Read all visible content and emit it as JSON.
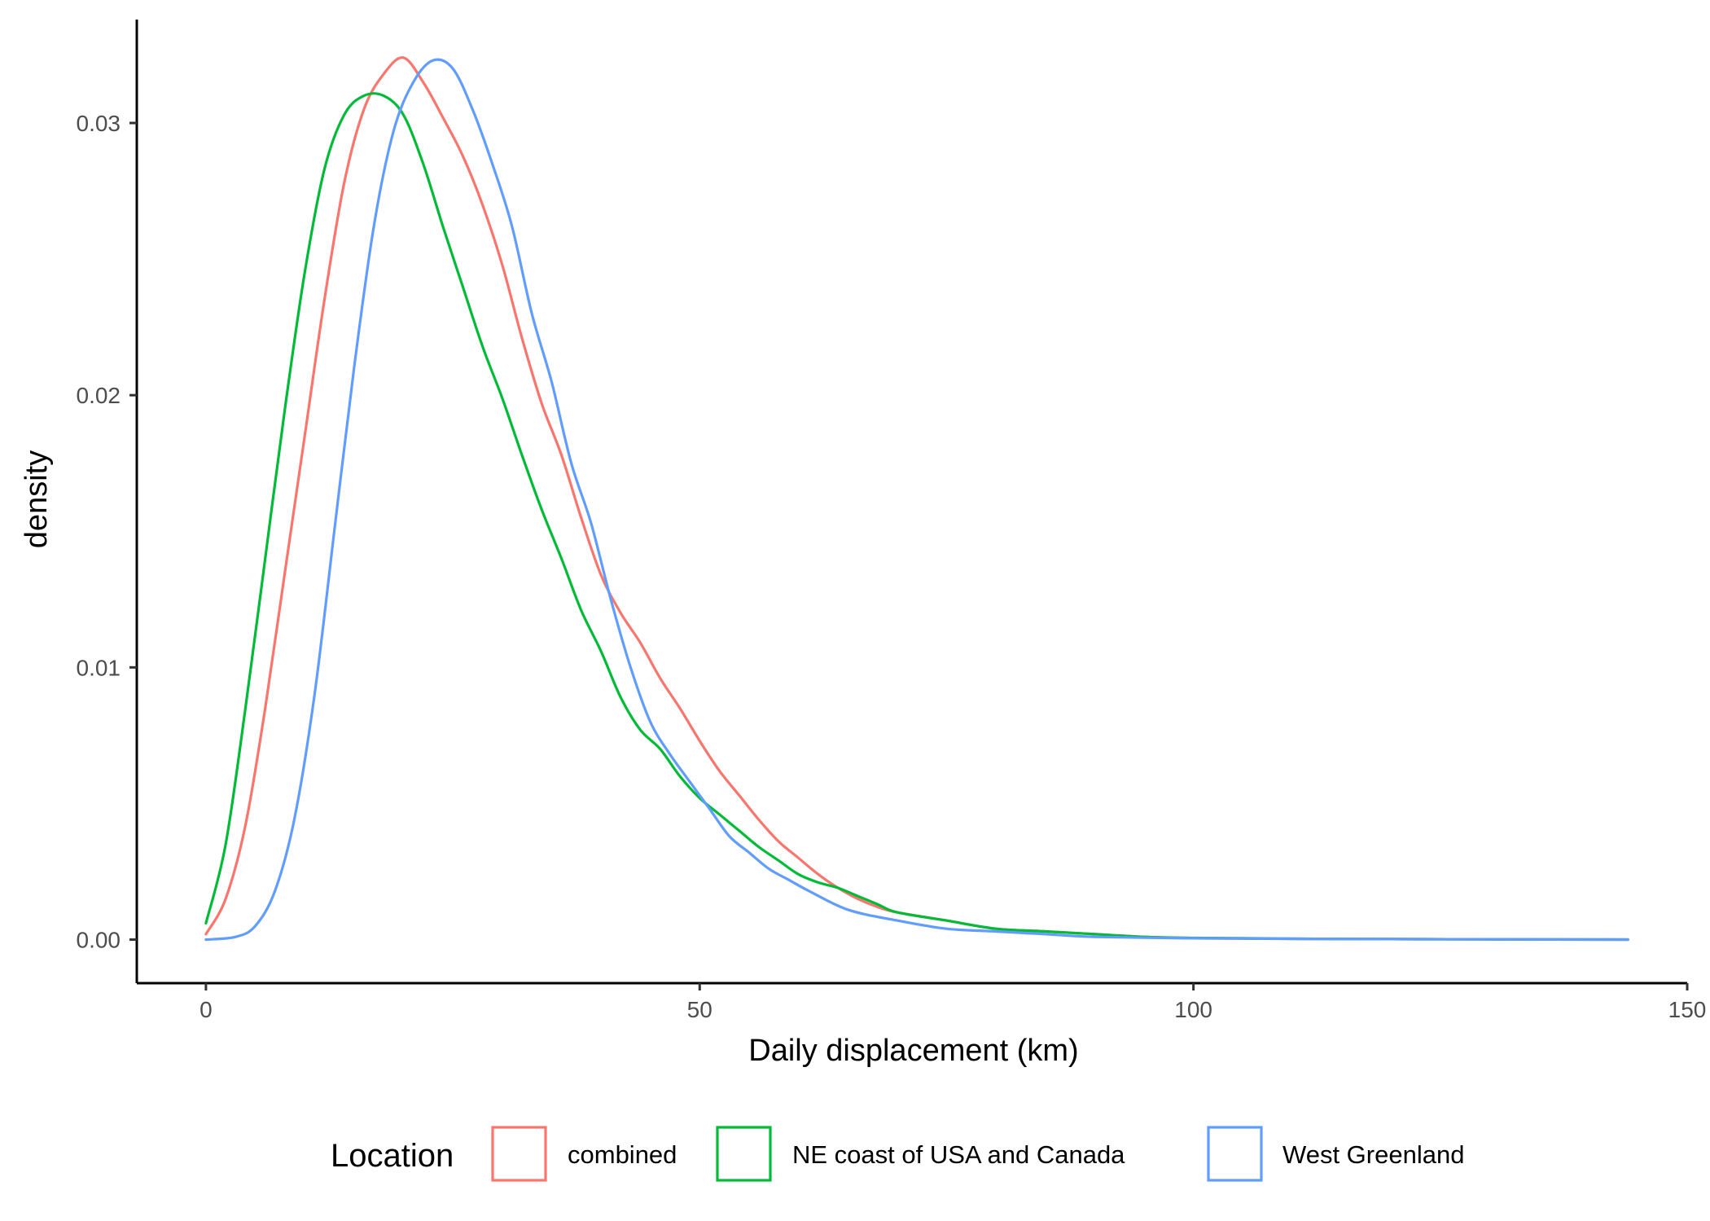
{
  "chart_data": {
    "type": "line",
    "title": "",
    "xlabel": "Daily displacement (km)",
    "ylabel": "density",
    "xlim": [
      -7,
      150
    ],
    "ylim": [
      -0.0016,
      0.0338
    ],
    "x_ticks": [
      0,
      50,
      100,
      150
    ],
    "x_tick_labels": [
      "0",
      "50",
      "100",
      "150"
    ],
    "y_ticks": [
      0.0,
      0.01,
      0.02,
      0.03
    ],
    "y_tick_labels": [
      "0.00",
      "0.01",
      "0.02",
      "0.03"
    ],
    "grid": false,
    "legend": {
      "title": "Location",
      "position": "bottom"
    },
    "series": [
      {
        "name": "combined",
        "color": "#F8766D",
        "points": [
          [
            0,
            0.0002
          ],
          [
            2,
            0.0015
          ],
          [
            4,
            0.0042
          ],
          [
            6,
            0.0085
          ],
          [
            8,
            0.0135
          ],
          [
            10,
            0.0185
          ],
          [
            12,
            0.0235
          ],
          [
            14,
            0.0278
          ],
          [
            16,
            0.0305
          ],
          [
            18,
            0.0318
          ],
          [
            20,
            0.0324
          ],
          [
            22,
            0.0315
          ],
          [
            24,
            0.0302
          ],
          [
            26,
            0.0288
          ],
          [
            28,
            0.027
          ],
          [
            30,
            0.0248
          ],
          [
            32,
            0.0221
          ],
          [
            34,
            0.0197
          ],
          [
            36,
            0.0178
          ],
          [
            38,
            0.0155
          ],
          [
            40,
            0.0134
          ],
          [
            42,
            0.012
          ],
          [
            44,
            0.0109
          ],
          [
            46,
            0.0096
          ],
          [
            48,
            0.0085
          ],
          [
            50,
            0.0073
          ],
          [
            52,
            0.0062
          ],
          [
            54,
            0.0053
          ],
          [
            56,
            0.0044
          ],
          [
            58,
            0.0036
          ],
          [
            60,
            0.003
          ],
          [
            62,
            0.0024
          ],
          [
            64,
            0.0019
          ],
          [
            66,
            0.0015
          ],
          [
            68,
            0.0012
          ],
          [
            70,
            0.001
          ],
          [
            75,
            0.0007
          ],
          [
            80,
            0.0004
          ],
          [
            85,
            0.0003
          ],
          [
            90,
            0.0002
          ],
          [
            95,
            0.0001
          ],
          [
            100,
            5e-05
          ],
          [
            110,
            3e-05
          ],
          [
            120,
            2e-05
          ],
          [
            130,
            1e-05
          ],
          [
            144,
            0.0
          ]
        ]
      },
      {
        "name": "NE coast of USA and Canada",
        "color": "#00BA38",
        "points": [
          [
            0,
            0.0006
          ],
          [
            2,
            0.0035
          ],
          [
            4,
            0.0085
          ],
          [
            6,
            0.014
          ],
          [
            8,
            0.0195
          ],
          [
            10,
            0.0245
          ],
          [
            12,
            0.0283
          ],
          [
            14,
            0.0303
          ],
          [
            16,
            0.031
          ],
          [
            18,
            0.031
          ],
          [
            20,
            0.0303
          ],
          [
            22,
            0.0285
          ],
          [
            24,
            0.0262
          ],
          [
            26,
            0.024
          ],
          [
            28,
            0.0218
          ],
          [
            30,
            0.0199
          ],
          [
            32,
            0.0178
          ],
          [
            34,
            0.0158
          ],
          [
            36,
            0.014
          ],
          [
            38,
            0.0121
          ],
          [
            40,
            0.0106
          ],
          [
            42,
            0.0089
          ],
          [
            44,
            0.0077
          ],
          [
            46,
            0.007
          ],
          [
            48,
            0.006
          ],
          [
            50,
            0.0052
          ],
          [
            52,
            0.0046
          ],
          [
            54,
            0.004
          ],
          [
            56,
            0.0034
          ],
          [
            58,
            0.0029
          ],
          [
            60,
            0.0024
          ],
          [
            62,
            0.0021
          ],
          [
            64,
            0.0019
          ],
          [
            66,
            0.0016
          ],
          [
            68,
            0.0013
          ],
          [
            70,
            0.001
          ],
          [
            75,
            0.0007
          ],
          [
            80,
            0.0004
          ],
          [
            85,
            0.0003
          ],
          [
            90,
            0.0002
          ],
          [
            95,
            0.0001
          ],
          [
            100,
            6e-05
          ],
          [
            105,
            5e-05
          ],
          [
            110,
            3e-05
          ],
          [
            120,
            2e-05
          ],
          [
            130,
            1e-05
          ],
          [
            144,
            0.0
          ]
        ]
      },
      {
        "name": "West Greenland",
        "color": "#619CFF",
        "points": [
          [
            0,
            0.0
          ],
          [
            3,
            0.0001
          ],
          [
            5,
            0.0005
          ],
          [
            7,
            0.0018
          ],
          [
            9,
            0.0045
          ],
          [
            11,
            0.009
          ],
          [
            13,
            0.015
          ],
          [
            15,
            0.021
          ],
          [
            17,
            0.0262
          ],
          [
            19,
            0.0297
          ],
          [
            21,
            0.0315
          ],
          [
            23,
            0.0323
          ],
          [
            25,
            0.032
          ],
          [
            27,
            0.0305
          ],
          [
            29,
            0.0285
          ],
          [
            31,
            0.0262
          ],
          [
            33,
            0.023
          ],
          [
            35,
            0.0205
          ],
          [
            37,
            0.0175
          ],
          [
            39,
            0.0153
          ],
          [
            41,
            0.0125
          ],
          [
            43,
            0.01
          ],
          [
            45,
            0.008
          ],
          [
            47,
            0.0068
          ],
          [
            49,
            0.0058
          ],
          [
            51,
            0.0048
          ],
          [
            53,
            0.0038
          ],
          [
            55,
            0.0032
          ],
          [
            57,
            0.0026
          ],
          [
            59,
            0.0022
          ],
          [
            61,
            0.0018
          ],
          [
            65,
            0.0011
          ],
          [
            70,
            0.0007
          ],
          [
            75,
            0.0004
          ],
          [
            80,
            0.0003
          ],
          [
            85,
            0.0002
          ],
          [
            90,
            0.0001
          ],
          [
            100,
            5e-05
          ],
          [
            110,
            3e-05
          ],
          [
            120,
            2e-05
          ],
          [
            130,
            1e-05
          ],
          [
            144,
            0.0
          ]
        ]
      }
    ]
  }
}
